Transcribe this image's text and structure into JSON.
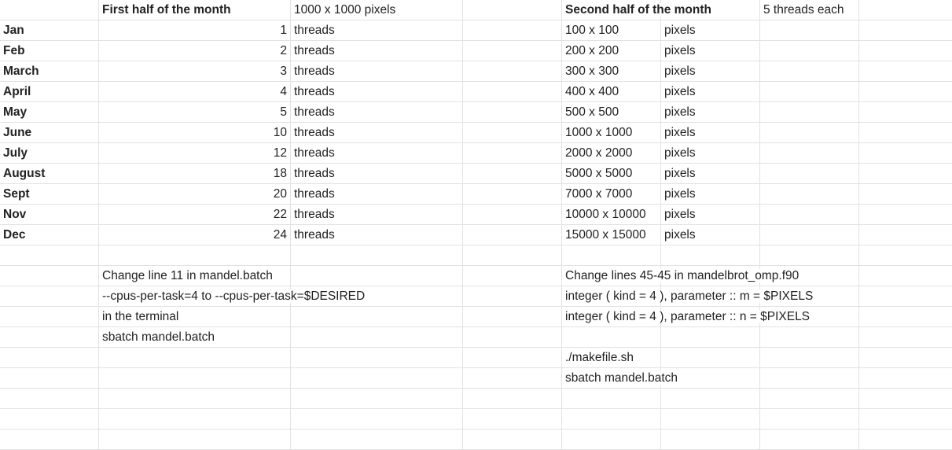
{
  "headers": {
    "first_half": "First half of the month",
    "first_half_size": "1000 x 1000 pixels",
    "second_half": "Second half of the month",
    "second_half_threads": "5 threads each"
  },
  "rows": [
    {
      "month": "Jan",
      "threads": "1",
      "threads_unit": "threads",
      "pixels": "100 x 100",
      "pixels_unit": "pixels"
    },
    {
      "month": "Feb",
      "threads": "2",
      "threads_unit": "threads",
      "pixels": "200 x 200",
      "pixels_unit": "pixels"
    },
    {
      "month": "March",
      "threads": "3",
      "threads_unit": "threads",
      "pixels": "300 x 300",
      "pixels_unit": "pixels"
    },
    {
      "month": "April",
      "threads": "4",
      "threads_unit": "threads",
      "pixels": "400 x 400",
      "pixels_unit": "pixels"
    },
    {
      "month": "May",
      "threads": "5",
      "threads_unit": "threads",
      "pixels": "500 x 500",
      "pixels_unit": "pixels"
    },
    {
      "month": "June",
      "threads": "10",
      "threads_unit": "threads",
      "pixels": "1000 x 1000",
      "pixels_unit": "pixels"
    },
    {
      "month": "July",
      "threads": "12",
      "threads_unit": "threads",
      "pixels": "2000 x 2000",
      "pixels_unit": "pixels"
    },
    {
      "month": "August",
      "threads": "18",
      "threads_unit": "threads",
      "pixels": "5000 x 5000",
      "pixels_unit": "pixels"
    },
    {
      "month": "Sept",
      "threads": "20",
      "threads_unit": "threads",
      "pixels": "7000 x 7000",
      "pixels_unit": "pixels"
    },
    {
      "month": "Nov",
      "threads": "22",
      "threads_unit": "threads",
      "pixels": "10000 x 10000",
      "pixels_unit": "pixels"
    },
    {
      "month": "Dec",
      "threads": "24",
      "threads_unit": "threads",
      "pixels": "15000 x 15000",
      "pixels_unit": "pixels"
    }
  ],
  "notes_left": [
    "Change line 11 in mandel.batch",
    "--cpus-per-task=4 to --cpus-per-task=$DESIRED",
    "in the terminal",
    "sbatch mandel.batch"
  ],
  "notes_right": [
    "Change lines 45-45 in mandelbrot_omp.f90",
    "integer ( kind = 4 ), parameter :: m = $PIXELS",
    "integer ( kind = 4 ), parameter :: n = $PIXELS",
    "",
    "./makefile.sh",
    "sbatch mandel.batch"
  ]
}
